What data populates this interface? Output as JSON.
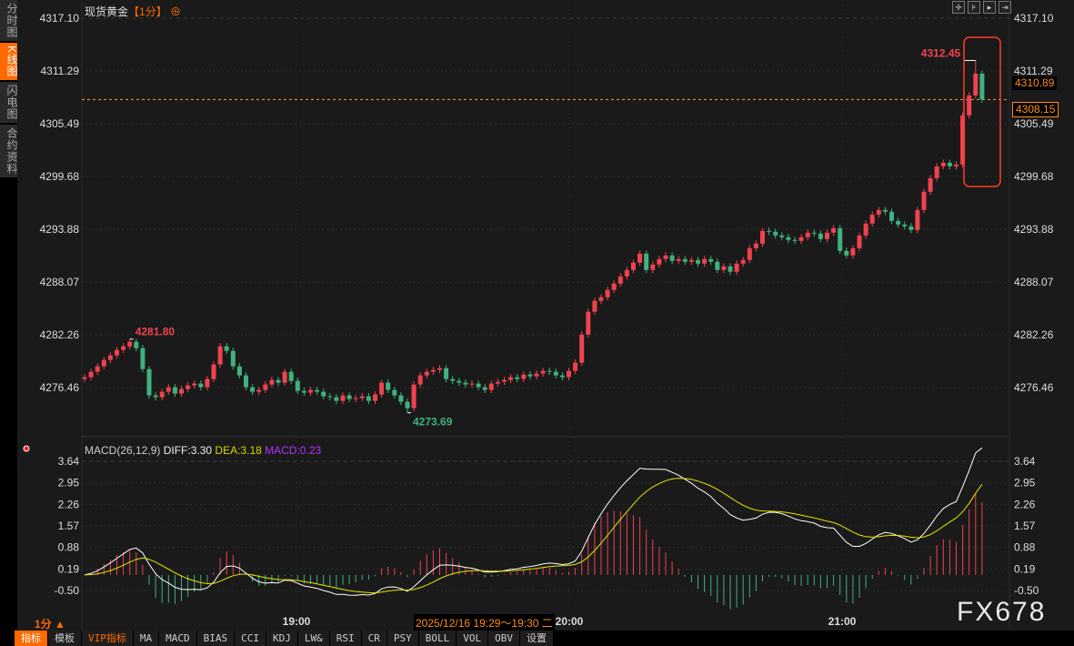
{
  "sidebar": {
    "tabs": [
      "分时图",
      "K线图",
      "闪电图",
      "合约资料"
    ],
    "active": 1
  },
  "header": {
    "instrument": "现货黄金",
    "period": "【1分】",
    "crosshair_icon": "target-icon"
  },
  "tools": [
    "crosshair-icon",
    "zoom-fit-icon",
    "play-icon",
    "jump-end-icon"
  ],
  "price_boxes": {
    "high_marker": "4310.89",
    "current": "4308.15"
  },
  "macd_header": {
    "name": "MACD(26,12,9)",
    "diff": "DIFF:3.30",
    "dea": "DEA:3.18",
    "macd": "MACD:0.23"
  },
  "period_label": "1分 ▲",
  "tooltip": "2025/12/16 19:29～19:30 二",
  "watermark": "FX678",
  "toolbar": [
    "指标",
    "模板",
    "VIP指标",
    "MA",
    "MACD",
    "BIAS",
    "CCI",
    "KDJ",
    "LW&",
    "RSI",
    "CR",
    "PSY",
    "BOLL",
    "VOL",
    "OBV",
    "设置"
  ],
  "colors": {
    "up": "#f0424f",
    "down": "#3fb27f",
    "diff": "#ffffff",
    "dea": "#e6e600",
    "accent": "#ff6a00"
  },
  "chart_data": [
    {
      "type": "candlestick",
      "title": "现货黄金 1分",
      "y_ticks": [
        "4317.10",
        "4311.29",
        "4305.49",
        "4299.68",
        "4293.88",
        "4288.07",
        "4282.26",
        "4276.46"
      ],
      "ylim": [
        4276.46,
        4317.1
      ],
      "x_ticks": [
        "19:00",
        "20:00",
        "21:00"
      ],
      "open_first": 4277.4,
      "close": [
        4277.6,
        4278.2,
        4278.8,
        4279.5,
        4280.0,
        4280.6,
        4281.0,
        4281.5,
        4280.8,
        4278.5,
        4275.6,
        4275.4,
        4276.0,
        4276.5,
        4275.8,
        4276.3,
        4276.7,
        4276.9,
        4276.5,
        4277.4,
        4279.0,
        4281.0,
        4280.5,
        4278.8,
        4277.8,
        4276.5,
        4276.0,
        4276.2,
        4276.8,
        4277.3,
        4277.0,
        4278.2,
        4277.2,
        4276.1,
        4275.9,
        4276.2,
        4276.0,
        4275.5,
        4275.4,
        4275.0,
        4275.6,
        4275.2,
        4275.3,
        4275.5,
        4275.0,
        4275.7,
        4277.0,
        4276.2,
        4275.6,
        4274.9,
        4274.2,
        4276.8,
        4277.8,
        4278.2,
        4278.4,
        4278.6,
        4277.4,
        4277.2,
        4277.0,
        4276.8,
        4276.9,
        4276.5,
        4276.2,
        4276.9,
        4277.1,
        4277.3,
        4277.6,
        4277.4,
        4277.9,
        4277.7,
        4278.0,
        4278.3,
        4278.2,
        4277.8,
        4277.6,
        4278.3,
        4279.2,
        4282.3,
        4284.8,
        4286.0,
        4286.4,
        4287.2,
        4287.9,
        4288.7,
        4289.4,
        4290.2,
        4291.2,
        4289.4,
        4290.0,
        4290.6,
        4291.0,
        4290.4,
        4290.6,
        4290.3,
        4290.5,
        4290.1,
        4290.6,
        4290.3,
        4289.4,
        4289.8,
        4289.2,
        4290.1,
        4290.5,
        4291.8,
        4292.3,
        4293.7,
        4293.6,
        4293.2,
        4293.0,
        4292.7,
        4292.6,
        4293.0,
        4293.5,
        4293.4,
        4292.8,
        4293.5,
        4294.0,
        4291.5,
        4291.0,
        4291.8,
        4293.2,
        4294.5,
        4295.5,
        4296.0,
        4295.8,
        4294.8,
        4294.4,
        4294.2,
        4293.8,
        4296.0,
        4298.0,
        4299.5,
        4300.8,
        4301.2,
        4300.8,
        4301.0,
        4306.4,
        4308.6,
        4311.0,
        4308.15
      ],
      "annotations": [
        {
          "label": "4281.80",
          "value": 4281.8,
          "index": 7,
          "kind": "high"
        },
        {
          "label": "4273.69",
          "value": 4273.69,
          "index": 50,
          "kind": "low"
        },
        {
          "label": "4312.45",
          "value": 4312.45,
          "index": 138,
          "kind": "high"
        }
      ],
      "current_price": 4308.15
    },
    {
      "type": "macd",
      "params": [
        26,
        12,
        9
      ],
      "y_ticks": [
        "3.64",
        "2.95",
        "2.26",
        "1.57",
        "0.88",
        "0.19",
        "-0.50"
      ],
      "ylim": [
        -0.5,
        3.64
      ],
      "diff": 3.3,
      "dea": 3.18,
      "macd": 0.23
    }
  ]
}
